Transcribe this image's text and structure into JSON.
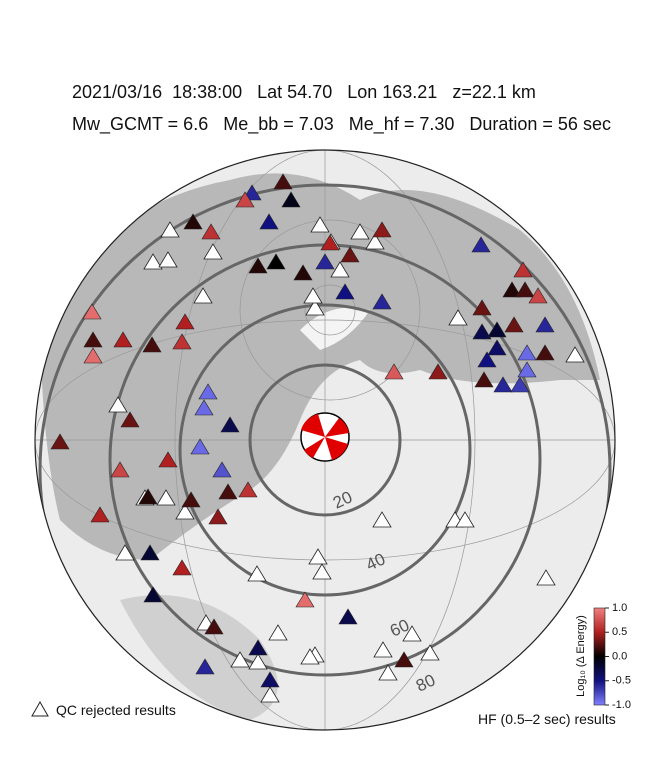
{
  "header": {
    "line1": "2021/03/16  18:38:00   Lat 54.70   Lon 163.21   z=22.1 km",
    "line2": "Mw_GCMT = 6.6   Me_bb = 7.03   Me_hf = 7.30   Duration = 56 sec"
  },
  "rings": [
    20,
    40,
    60,
    80
  ],
  "stations": {
    "values": [
      -0.6,
      0.2,
      0.7,
      -0.1,
      0.1,
      0.6,
      -0.5,
      0.5,
      0.4,
      0.1,
      0.0,
      0.1,
      -0.6,
      0.3,
      -0.5,
      -0.6,
      -0.6,
      0.6,
      0.1,
      0.2,
      0.7,
      0.3,
      -0.6,
      0.9,
      0.5,
      0.5,
      0.2,
      0.6,
      0.2,
      0.9,
      -0.9,
      -0.9,
      -0.3,
      -0.9,
      0.3,
      0.3,
      0.5,
      0.7,
      -0.8,
      0.2,
      0.6,
      0.1,
      0.2,
      0.5,
      0.4,
      -0.2,
      0.5,
      -0.2,
      0.9,
      -0.3,
      0.2,
      -0.3,
      -0.6,
      -0.4,
      0.2,
      0.4,
      0.8,
      -0.3,
      -0.2,
      0.3,
      -0.4,
      -0.5,
      -0.9,
      0.2,
      -0.9,
      0.2,
      -0.6,
      -0.7
    ]
  },
  "colorbar": {
    "label": "Log₁₀ (Δ Energy)",
    "lim": [
      -1,
      1
    ],
    "colors": [
      "#8080ff",
      "#101080",
      "#000000",
      "#b02020",
      "#f08080"
    ],
    "ticks": [
      {
        "value": 1,
        "label": "1.0"
      },
      0.5,
      {
        "value": 0,
        "label": "0.0"
      },
      -0.5,
      {
        "value": -1,
        "label": "-1.0"
      }
    ]
  },
  "legend": {
    "qc": "QC rejected results",
    "hf": "HF (0.5–2 sec) results"
  }
}
